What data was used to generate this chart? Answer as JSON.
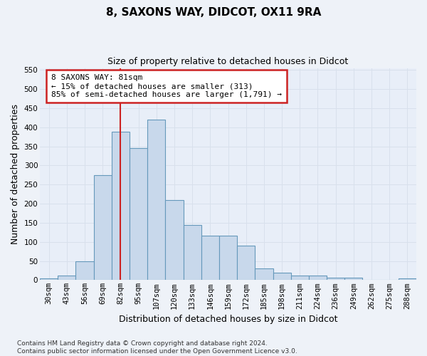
{
  "title": "8, SAXONS WAY, DIDCOT, OX11 9RA",
  "subtitle": "Size of property relative to detached houses in Didcot",
  "xlabel": "Distribution of detached houses by size in Didcot",
  "ylabel": "Number of detached properties",
  "bar_labels": [
    "30sqm",
    "43sqm",
    "56sqm",
    "69sqm",
    "82sqm",
    "95sqm",
    "107sqm",
    "120sqm",
    "133sqm",
    "146sqm",
    "159sqm",
    "172sqm",
    "185sqm",
    "198sqm",
    "211sqm",
    "224sqm",
    "236sqm",
    "249sqm",
    "262sqm",
    "275sqm",
    "288sqm"
  ],
  "bar_values": [
    5,
    12,
    49,
    275,
    388,
    345,
    420,
    210,
    145,
    116,
    116,
    91,
    30,
    19,
    11,
    11,
    6,
    6,
    1,
    1,
    5
  ],
  "bar_color": "#c8d8eb",
  "bar_edge_color": "#6699bb",
  "grid_color": "#d8e0ec",
  "vline_x_index": 4,
  "vline_color": "#cc2222",
  "annotation_text": "8 SAXONS WAY: 81sqm\n← 15% of detached houses are smaller (313)\n85% of semi-detached houses are larger (1,791) →",
  "annotation_box_facecolor": "#ffffff",
  "annotation_box_edgecolor": "#cc2222",
  "ylim": [
    0,
    555
  ],
  "yticks": [
    0,
    50,
    100,
    150,
    200,
    250,
    300,
    350,
    400,
    450,
    500,
    550
  ],
  "footnote": "Contains HM Land Registry data © Crown copyright and database right 2024.\nContains public sector information licensed under the Open Government Licence v3.0.",
  "bg_color": "#eef2f8",
  "plot_bg_color": "#e8eef8",
  "title_fontsize": 11,
  "subtitle_fontsize": 9,
  "ylabel_fontsize": 9,
  "xlabel_fontsize": 9,
  "tick_fontsize": 7.5,
  "annotation_fontsize": 8,
  "footnote_fontsize": 6.5
}
